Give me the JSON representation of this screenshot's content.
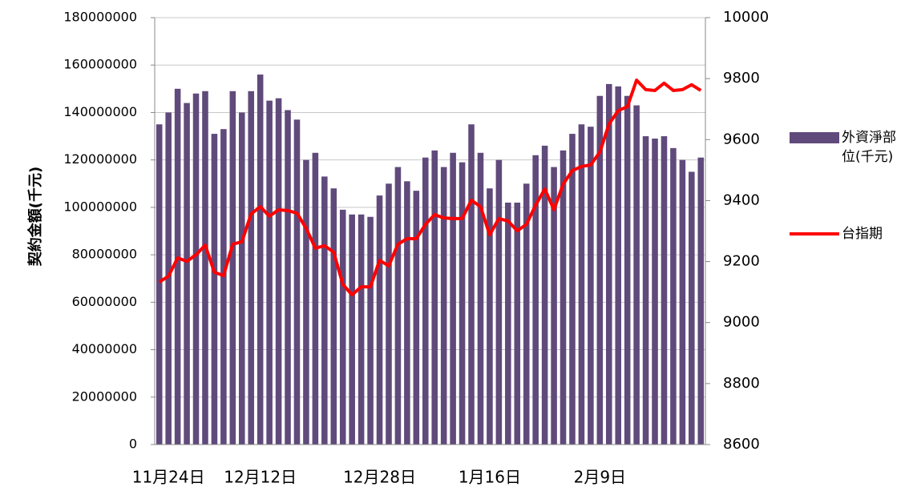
{
  "chart_data": {
    "type": "bar",
    "y_label": "契約金額(千元)",
    "categories": [
      null,
      "11月24日",
      null,
      null,
      null,
      null,
      null,
      null,
      null,
      null,
      null,
      "12月12日",
      null,
      null,
      null,
      null,
      null,
      null,
      null,
      null,
      null,
      null,
      null,
      null,
      "12月28日",
      null,
      null,
      null,
      null,
      null,
      null,
      null,
      null,
      null,
      null,
      null,
      "1月16日",
      null,
      null,
      null,
      null,
      null,
      null,
      null,
      null,
      null,
      null,
      null,
      "2月9日",
      null,
      null,
      null,
      null,
      null,
      null,
      null,
      null,
      null,
      null,
      null
    ],
    "series": [
      {
        "name": "外資淨部位(千元)",
        "color": "#604a7b",
        "values": [
          135000000,
          140000000,
          150000000,
          144000000,
          148000000,
          149000000,
          131000000,
          133000000,
          149000000,
          140000000,
          149000000,
          156000000,
          145000000,
          146000000,
          141000000,
          137000000,
          120000000,
          123000000,
          113000000,
          108000000,
          99000000,
          97000000,
          97000000,
          96000000,
          105000000,
          110000000,
          117000000,
          111000000,
          107000000,
          121000000,
          124000000,
          117000000,
          123000000,
          119000000,
          135000000,
          123000000,
          108000000,
          120000000,
          102000000,
          102000000,
          110000000,
          122000000,
          126000000,
          117000000,
          124000000,
          131000000,
          135000000,
          134000000,
          147000000,
          152000000,
          151000000,
          147000000,
          143000000,
          130000000,
          129000000,
          130000000,
          125000000,
          120000000,
          115000000,
          121000000
        ]
      },
      {
        "name": "台指期",
        "color": "#ff0000",
        "type": "line",
        "axis": "y2",
        "values": [
          9133,
          9152,
          9212,
          9201,
          9222,
          9254,
          9165,
          9154,
          9257,
          9265,
          9356,
          9380,
          9349,
          9370,
          9367,
          9359,
          9309,
          9244,
          9252,
          9231,
          9125,
          9091,
          9117,
          9117,
          9204,
          9186,
          9257,
          9275,
          9275,
          9322,
          9354,
          9343,
          9341,
          9341,
          9401,
          9380,
          9288,
          9341,
          9333,
          9301,
          9322,
          9385,
          9438,
          9370,
          9454,
          9498,
          9512,
          9517,
          9559,
          9651,
          9695,
          9708,
          9795,
          9764,
          9761,
          9785,
          9761,
          9764,
          9780,
          9761
        ]
      }
    ],
    "ylim": [
      0,
      180000000
    ],
    "yticks": [
      0,
      20000000,
      40000000,
      60000000,
      80000000,
      100000000,
      120000000,
      140000000,
      160000000,
      180000000
    ],
    "y2lim": [
      8600,
      10000
    ],
    "y2ticks": [
      8600,
      8800,
      9000,
      9200,
      9400,
      9600,
      9800,
      10000
    ],
    "grid": true,
    "legend": "right"
  }
}
